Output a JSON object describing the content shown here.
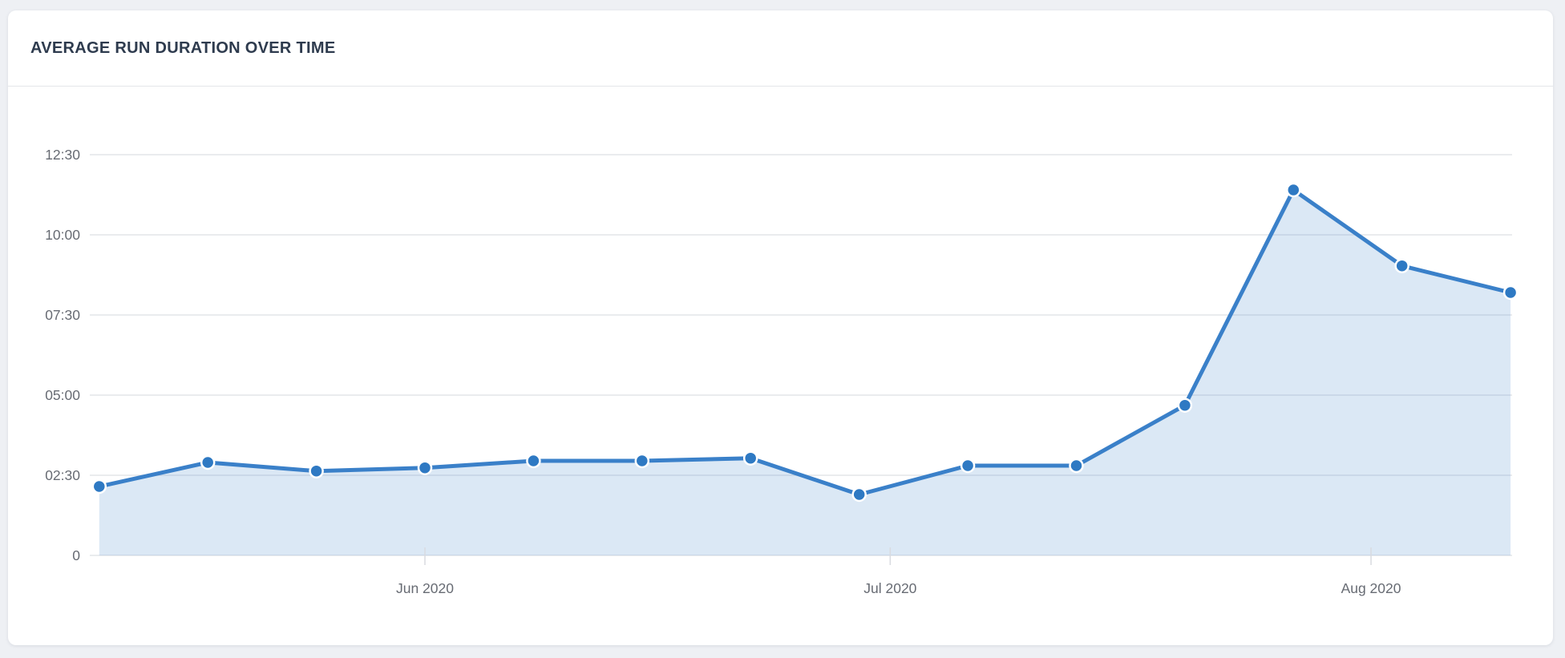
{
  "card": {
    "title": "AVERAGE RUN DURATION OVER TIME"
  },
  "chart_data": {
    "type": "area",
    "title": "AVERAGE RUN DURATION OVER TIME",
    "series": [
      {
        "name": "average-run-duration",
        "x_dates": [
          "2020-05-11",
          "2020-05-18",
          "2020-05-25",
          "2020-06-01",
          "2020-06-08",
          "2020-06-15",
          "2020-06-22",
          "2020-06-29",
          "2020-07-06",
          "2020-07-13",
          "2020-07-20",
          "2020-07-27",
          "2020-08-03",
          "2020-08-10"
        ],
        "values": [
          129,
          174,
          158,
          164,
          177,
          177,
          182,
          114,
          168,
          168,
          281,
          684,
          542,
          492
        ],
        "value_labels": [
          "02:09",
          "02:54",
          "02:38",
          "02:44",
          "02:57",
          "02:57",
          "03:02",
          "01:54",
          "02:48",
          "02:48",
          "04:41",
          "11:24",
          "09:02",
          "08:12"
        ]
      }
    ],
    "value_format": "mm:ss duration (tick unit = 1:00)",
    "yticks": {
      "labels": [
        "0",
        "02:30",
        "05:00",
        "07:30",
        "10:00",
        "12:30"
      ],
      "values": [
        0,
        150,
        300,
        450,
        600,
        750
      ]
    },
    "xticks": {
      "labels": [
        "Jun 2020",
        "Jul 2020",
        "Aug 2020"
      ],
      "dates": [
        "2020-06-01",
        "2020-07-01",
        "2020-08-01"
      ]
    },
    "ylim": [
      0,
      812
    ],
    "grid": true,
    "legend": false,
    "colors": {
      "line": "#3a80c9",
      "marker": "#2e79c3",
      "marker_border": "#ffffff",
      "fill": "rgba(58,128,201,0.18)",
      "gridline": "#e3e5e9",
      "x_tick_mark": "#d8dbe0",
      "tick_text": "#676b73",
      "title_text": "#2e3b4e",
      "card_background": "#ffffff",
      "page_background": "#eef0f4"
    }
  }
}
